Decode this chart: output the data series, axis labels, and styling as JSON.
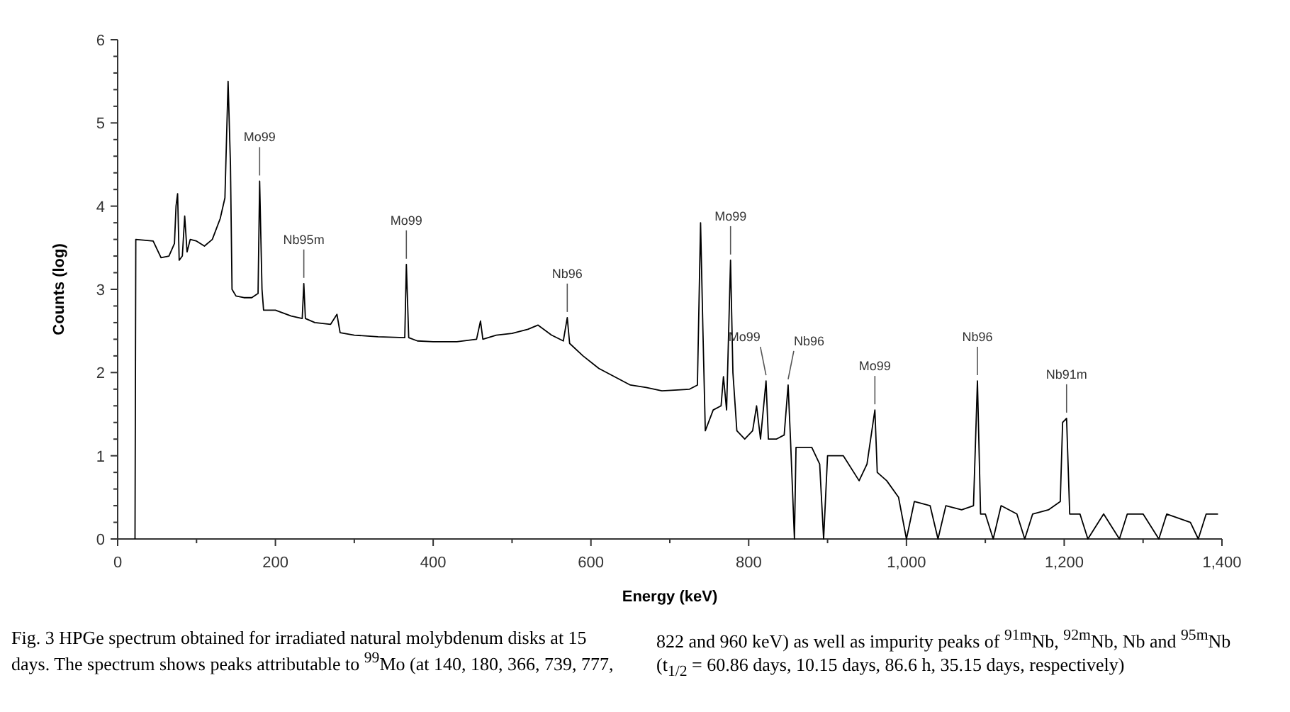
{
  "chart_data": {
    "type": "line",
    "xlabel": "Energy (keV)",
    "ylabel": "Counts (log)",
    "xlim": [
      0,
      1400
    ],
    "ylim": [
      0,
      6
    ],
    "xticks": [
      0,
      200,
      400,
      600,
      800,
      {
        "value": 1000,
        "label": "1,000"
      },
      {
        "value": 1200,
        "label": "1,200"
      },
      {
        "value": 1400,
        "label": "1,400"
      }
    ],
    "yticks": [
      0,
      1,
      2,
      3,
      4,
      5,
      6
    ],
    "grid": false,
    "marker": "none",
    "line_style": "solid",
    "series": [
      {
        "color": "#000000",
        "x": [
          22,
          23,
          45,
          55,
          65,
          72,
          74,
          76,
          78,
          82,
          85,
          88,
          92,
          100,
          110,
          120,
          130,
          136,
          140,
          143,
          145,
          150,
          160,
          170,
          178,
          180,
          183,
          185,
          200,
          220,
          234,
          236,
          238,
          250,
          270,
          278,
          282,
          300,
          330,
          364,
          366,
          369,
          380,
          400,
          430,
          455,
          460,
          463,
          480,
          500,
          520,
          533,
          550,
          565,
          570,
          573,
          590,
          610,
          630,
          650,
          670,
          690,
          710,
          725,
          735,
          739,
          742,
          745,
          755,
          765,
          768,
          772,
          777,
          780,
          785,
          795,
          805,
          810,
          815,
          822,
          825,
          835,
          845,
          850,
          853,
          858,
          860,
          880,
          890,
          895,
          900,
          920,
          940,
          950,
          960,
          963,
          975,
          990,
          1000,
          1010,
          1030,
          1040,
          1050,
          1070,
          1085,
          1090,
          1094,
          1100,
          1110,
          1120,
          1140,
          1150,
          1160,
          1180,
          1195,
          1198,
          1203,
          1207,
          1220,
          1230,
          1250,
          1270,
          1280,
          1300,
          1320,
          1330,
          1360,
          1370,
          1380,
          1395
        ],
        "values": [
          0,
          3.6,
          3.58,
          3.38,
          3.4,
          3.55,
          4.0,
          4.15,
          3.35,
          3.4,
          3.88,
          3.45,
          3.6,
          3.58,
          3.52,
          3.6,
          3.85,
          4.1,
          5.5,
          4.5,
          3.0,
          2.92,
          2.9,
          2.9,
          2.95,
          4.3,
          3.0,
          2.75,
          2.75,
          2.68,
          2.65,
          3.07,
          2.65,
          2.6,
          2.58,
          2.7,
          2.48,
          2.45,
          2.43,
          2.42,
          3.3,
          2.42,
          2.38,
          2.37,
          2.37,
          2.4,
          2.62,
          2.4,
          2.45,
          2.47,
          2.52,
          2.57,
          2.45,
          2.38,
          2.66,
          2.35,
          2.2,
          2.05,
          1.95,
          1.85,
          1.82,
          1.78,
          1.79,
          1.8,
          1.85,
          3.8,
          2.5,
          1.3,
          1.55,
          1.6,
          1.95,
          1.55,
          3.35,
          2.0,
          1.3,
          1.2,
          1.3,
          1.6,
          1.2,
          1.9,
          1.2,
          1.2,
          1.25,
          1.85,
          1.2,
          0,
          1.1,
          1.1,
          0.9,
          0,
          1.0,
          1.0,
          0.7,
          0.9,
          1.55,
          0.8,
          0.7,
          0.5,
          0,
          0.45,
          0.4,
          0,
          0.4,
          0.35,
          0.4,
          1.9,
          0.3,
          0.3,
          0,
          0.4,
          0.3,
          0,
          0.3,
          0.35,
          0.45,
          1.4,
          1.45,
          0.3,
          0.3,
          0,
          0.3,
          0,
          0.3,
          0.3,
          0,
          0.3,
          0.2,
          0,
          0.3,
          0.3
        ]
      }
    ],
    "annotations": [
      {
        "text": "Mo99",
        "x": 180,
        "y": 4.3
      },
      {
        "text": "Nb95m",
        "x": 236,
        "y": 3.07
      },
      {
        "text": "Mo99",
        "x": 366,
        "y": 3.3
      },
      {
        "text": "Nb96",
        "x": 570,
        "y": 2.66
      },
      {
        "text": "Mo99",
        "x": 777,
        "y": 3.35
      },
      {
        "text": "Mo99",
        "x": 822,
        "y": 1.9
      },
      {
        "text": "Nb96",
        "x": 850,
        "y": 1.85
      },
      {
        "text": "Mo99",
        "x": 960,
        "y": 1.55
      },
      {
        "text": "Nb96",
        "x": 1090,
        "y": 1.9
      },
      {
        "text": "Nb91m",
        "x": 1203,
        "y": 1.45
      },
      "Fig. 3 HPGe spectrum obtained for irradiated natural molybdenum disks at 15 days. The spectrum shows peaks attributable to $^{99}$Mo (at 140, 180, 366, 739, 777, 822 and 960 keV) as well as impurity peaks of $^{91m}$Nb, $^{92m}$Nb, Nb and $^{95m}$Nb (t$_{1/2}$ = 60.86 days, 10.15 days, 86.6 h, 35.15 days, respectively)"
    ]
  }
}
